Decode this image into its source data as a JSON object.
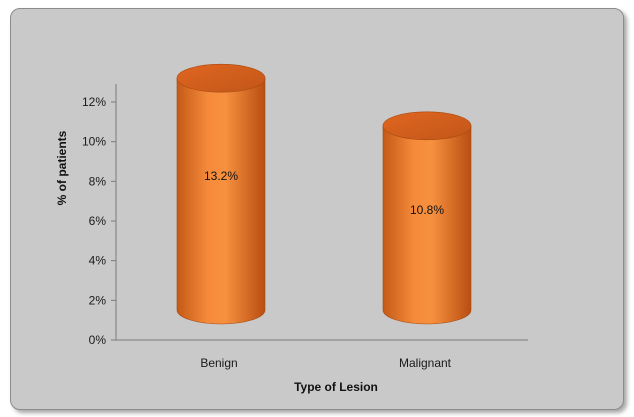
{
  "chart_data": {
    "type": "bar",
    "title": "",
    "xlabel": "Type of Lesion",
    "ylabel": "% of patients",
    "categories": [
      "Benign",
      "Malignant"
    ],
    "values": [
      13.2,
      10.8
    ],
    "data_labels": [
      "13.2%",
      "10.8%"
    ],
    "ylim": [
      0,
      12
    ],
    "yticks": [
      "0%",
      "2%",
      "4%",
      "6%",
      "8%",
      "10%",
      "12%"
    ],
    "bar_shape": "cylinder",
    "bar_color": "#f07a2c",
    "background_color": "#c9c9c9",
    "grid": false,
    "legend": "none"
  }
}
